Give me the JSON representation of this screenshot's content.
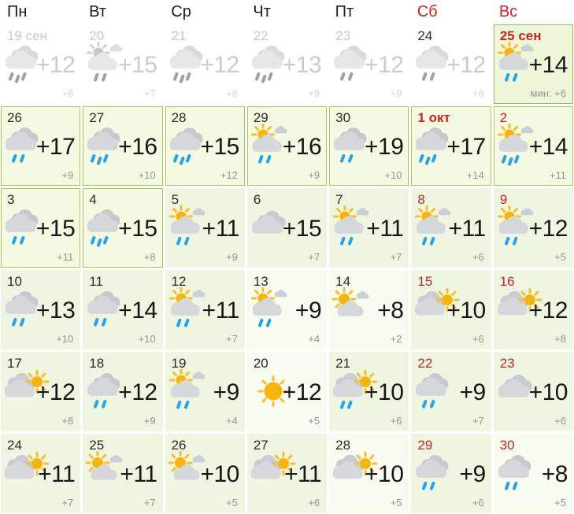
{
  "weekday_headers": [
    {
      "label": "Пн",
      "weekend": false
    },
    {
      "label": "Вт",
      "weekend": false
    },
    {
      "label": "Ср",
      "weekend": false
    },
    {
      "label": "Чт",
      "weekend": false
    },
    {
      "label": "Пт",
      "weekend": false
    },
    {
      "label": "Сб",
      "weekend": true
    },
    {
      "label": "Вс",
      "weekend": true
    }
  ],
  "colors": {
    "weekend_red": "#cc2222",
    "frame_green": "#a3c85c",
    "today_border": "#8fc25b",
    "cell_green_bg": "#eef6e2",
    "framed_bg": "#f4f9e2",
    "today_bg": "#eef7da",
    "rain_drop_blue": "#28a3e9",
    "sun_yellow": "#f6b50e",
    "cloud_gray": "#d5d8db",
    "past_text_gray": "#c9ccce"
  },
  "cells": [
    {
      "date": "19 сен",
      "date_style": "gray",
      "icon": "rain3",
      "temp": "+12",
      "min": "+8",
      "variant": "plain",
      "past": true
    },
    {
      "date": "20",
      "date_style": "gray",
      "icon": "sunrain",
      "temp": "+15",
      "min": "+7",
      "variant": "plain",
      "past": true
    },
    {
      "date": "21",
      "date_style": "gray",
      "icon": "rain3",
      "temp": "+12",
      "min": "+8",
      "variant": "plain",
      "past": true
    },
    {
      "date": "22",
      "date_style": "gray",
      "icon": "rain3",
      "temp": "+13",
      "min": "+9",
      "variant": "plain",
      "past": true
    },
    {
      "date": "23",
      "date_style": "gray",
      "icon": "rain2",
      "temp": "+12",
      "min": "+9",
      "variant": "plain",
      "past": true
    },
    {
      "date": "24",
      "date_style": "normal",
      "icon": "rain2",
      "temp": "+12",
      "min": "+8",
      "variant": "plain",
      "past": true
    },
    {
      "date": "25 сен",
      "date_style": "red-bold",
      "icon": "sunrain",
      "temp": "+14",
      "min": "мин: +6",
      "variant": "today",
      "past": false
    },
    {
      "date": "26",
      "date_style": "normal",
      "icon": "rain2",
      "temp": "+17",
      "min": "+9",
      "variant": "framed",
      "past": false
    },
    {
      "date": "27",
      "date_style": "normal",
      "icon": "rain3",
      "temp": "+16",
      "min": "+10",
      "variant": "framed",
      "past": false
    },
    {
      "date": "28",
      "date_style": "normal",
      "icon": "rain3",
      "temp": "+15",
      "min": "+12",
      "variant": "framed",
      "past": false
    },
    {
      "date": "29",
      "date_style": "normal",
      "icon": "sunrain",
      "temp": "+16",
      "min": "+9",
      "variant": "framed",
      "past": false
    },
    {
      "date": "30",
      "date_style": "normal",
      "icon": "rain2",
      "temp": "+19",
      "min": "+10",
      "variant": "framed",
      "past": false
    },
    {
      "date": "1 окт",
      "date_style": "red-bold",
      "icon": "rain3",
      "temp": "+17",
      "min": "+14",
      "variant": "framed",
      "past": false
    },
    {
      "date": "2",
      "date_style": "red",
      "icon": "sunrain3",
      "temp": "+14",
      "min": "+11",
      "variant": "framed",
      "past": false
    },
    {
      "date": "3",
      "date_style": "normal",
      "icon": "rain2",
      "temp": "+15",
      "min": "+11",
      "variant": "framed",
      "past": false
    },
    {
      "date": "4",
      "date_style": "normal",
      "icon": "rain3",
      "temp": "+15",
      "min": "+8",
      "variant": "framed",
      "past": false
    },
    {
      "date": "5",
      "date_style": "normal",
      "icon": "sunrain",
      "temp": "+11",
      "min": "+9",
      "variant": "green",
      "past": false
    },
    {
      "date": "6",
      "date_style": "normal",
      "icon": "cloud",
      "temp": "+15",
      "min": "+7",
      "variant": "green",
      "past": false
    },
    {
      "date": "7",
      "date_style": "normal",
      "icon": "sunrain",
      "temp": "+11",
      "min": "+7",
      "variant": "green",
      "past": false
    },
    {
      "date": "8",
      "date_style": "red",
      "icon": "sunrain",
      "temp": "+11",
      "min": "+6",
      "variant": "green",
      "past": false
    },
    {
      "date": "9",
      "date_style": "red",
      "icon": "sunrain",
      "temp": "+12",
      "min": "+5",
      "variant": "green",
      "past": false
    },
    {
      "date": "10",
      "date_style": "normal",
      "icon": "rain2",
      "temp": "+13",
      "min": "+10",
      "variant": "green",
      "past": false
    },
    {
      "date": "11",
      "date_style": "normal",
      "icon": "rain2",
      "temp": "+14",
      "min": "+10",
      "variant": "green",
      "past": false
    },
    {
      "date": "12",
      "date_style": "normal",
      "icon": "sunrain",
      "temp": "+11",
      "min": "+7",
      "variant": "green",
      "past": false
    },
    {
      "date": "13",
      "date_style": "normal",
      "icon": "sunrain",
      "temp": "+9",
      "min": "+4",
      "variant": "pale",
      "past": false
    },
    {
      "date": "14",
      "date_style": "normal",
      "icon": "suncloud",
      "temp": "+8",
      "min": "+2",
      "variant": "pale",
      "past": false
    },
    {
      "date": "15",
      "date_style": "red",
      "icon": "cloudsun",
      "temp": "+10",
      "min": "+6",
      "variant": "green",
      "past": false
    },
    {
      "date": "16",
      "date_style": "red",
      "icon": "cloudsun",
      "temp": "+12",
      "min": "+8",
      "variant": "green",
      "past": false
    },
    {
      "date": "17",
      "date_style": "normal",
      "icon": "cloudsun",
      "temp": "+12",
      "min": "+8",
      "variant": "green",
      "past": false
    },
    {
      "date": "18",
      "date_style": "normal",
      "icon": "rain2",
      "temp": "+12",
      "min": "+9",
      "variant": "green",
      "past": false
    },
    {
      "date": "19",
      "date_style": "normal",
      "icon": "sunrain",
      "temp": "+9",
      "min": "+4",
      "variant": "green",
      "past": false
    },
    {
      "date": "20",
      "date_style": "normal",
      "icon": "sun",
      "temp": "+12",
      "min": "+5",
      "variant": "pale",
      "past": false
    },
    {
      "date": "21",
      "date_style": "normal",
      "icon": "cloudsunrain",
      "temp": "+10",
      "min": "+6",
      "variant": "green",
      "past": false
    },
    {
      "date": "22",
      "date_style": "red",
      "icon": "rain2",
      "temp": "+9",
      "min": "+7",
      "variant": "green",
      "past": false
    },
    {
      "date": "23",
      "date_style": "red",
      "icon": "cloud",
      "temp": "+10",
      "min": "+6",
      "variant": "green",
      "past": false
    },
    {
      "date": "24",
      "date_style": "normal",
      "icon": "cloudsun",
      "temp": "+11",
      "min": "+7",
      "variant": "green",
      "past": false
    },
    {
      "date": "25",
      "date_style": "normal",
      "icon": "suncloud",
      "temp": "+11",
      "min": "+7",
      "variant": "green",
      "past": false
    },
    {
      "date": "26",
      "date_style": "normal",
      "icon": "suncloud",
      "temp": "+10",
      "min": "+5",
      "variant": "green",
      "past": false
    },
    {
      "date": "27",
      "date_style": "normal",
      "icon": "cloudsun",
      "temp": "+11",
      "min": "+6",
      "variant": "green",
      "past": false
    },
    {
      "date": "28",
      "date_style": "normal",
      "icon": "cloudsun",
      "temp": "+10",
      "min": "+5",
      "variant": "pale",
      "past": false
    },
    {
      "date": "29",
      "date_style": "red",
      "icon": "rain2",
      "temp": "+9",
      "min": "+6",
      "variant": "green",
      "past": false
    },
    {
      "date": "30",
      "date_style": "red",
      "icon": "rain2",
      "temp": "+8",
      "min": "+5",
      "variant": "pale",
      "past": false
    }
  ]
}
